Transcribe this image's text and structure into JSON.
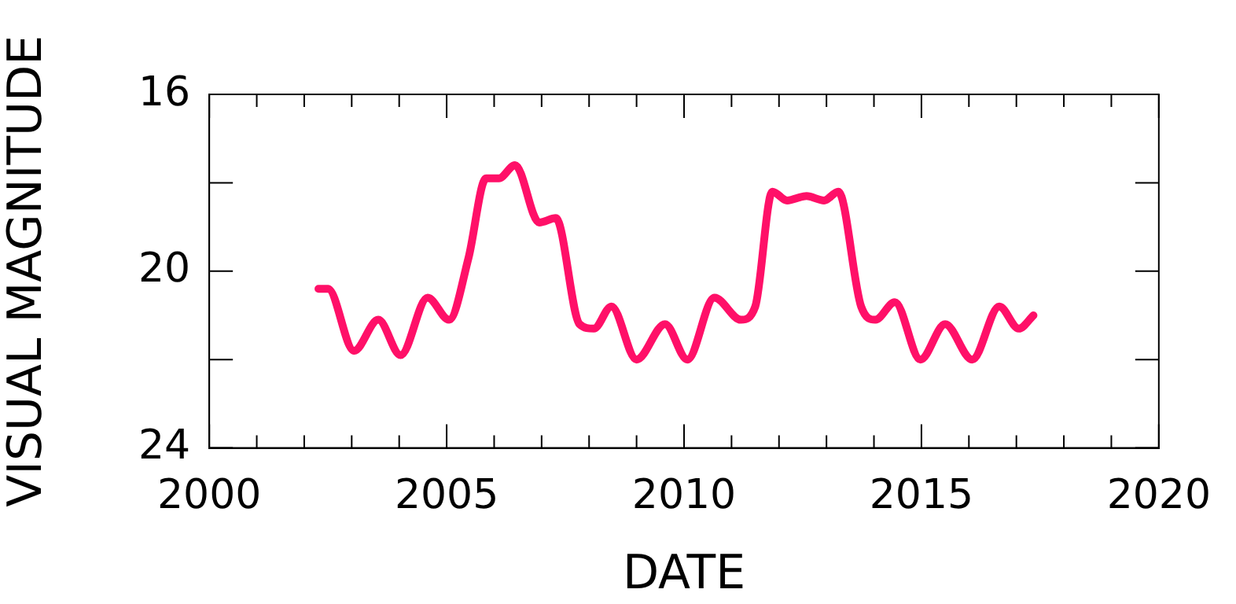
{
  "chart_data": {
    "type": "line",
    "xlabel": "DATE",
    "ylabel": "VISUAL MAGNITUDE",
    "x": [
      2002.3,
      2002.5,
      2003.05,
      2003.56,
      2004.03,
      2004.6,
      2005.05,
      2005.46,
      2005.83,
      2006.1,
      2006.44,
      2006.95,
      2007.3,
      2007.8,
      2008.1,
      2008.47,
      2009.0,
      2009.6,
      2010.07,
      2010.64,
      2011.2,
      2011.5,
      2011.86,
      2012.17,
      2012.58,
      2012.95,
      2013.25,
      2013.73,
      2014.03,
      2014.44,
      2014.98,
      2015.5,
      2016.07,
      2016.64,
      2017.05,
      2017.36
    ],
    "series": [
      {
        "color": "#ff1068",
        "values": [
          20.4,
          20.4,
          21.8,
          21.1,
          21.9,
          20.6,
          21.1,
          19.7,
          17.9,
          17.9,
          17.6,
          18.9,
          18.8,
          21.2,
          21.3,
          20.8,
          22.0,
          21.2,
          22.0,
          20.6,
          21.1,
          20.8,
          18.2,
          18.4,
          18.3,
          18.4,
          18.2,
          20.8,
          21.1,
          20.7,
          22.0,
          21.2,
          22.0,
          20.8,
          21.3,
          21.0
        ]
      }
    ],
    "xlim": [
      2000,
      2020
    ],
    "xticks": [
      2000,
      {
        "value": 2001,
        "label": null
      },
      {
        "value": 2002,
        "label": null
      },
      {
        "value": 2003,
        "label": null
      },
      {
        "value": 2004,
        "label": null
      },
      2005,
      {
        "value": 2006,
        "label": null
      },
      {
        "value": 2007,
        "label": null
      },
      {
        "value": 2008,
        "label": null
      },
      {
        "value": 2009,
        "label": null
      },
      2010,
      {
        "value": 2011,
        "label": null
      },
      {
        "value": 2012,
        "label": null
      },
      {
        "value": 2013,
        "label": null
      },
      {
        "value": 2014,
        "label": null
      },
      2015,
      {
        "value": 2016,
        "label": null
      },
      {
        "value": 2017,
        "label": null
      },
      {
        "value": 2018,
        "label": null
      },
      {
        "value": 2019,
        "label": null
      },
      2020
    ],
    "ylim": [
      24,
      16
    ],
    "yticks": [
      16,
      {
        "value": 18,
        "label": null
      },
      20,
      {
        "value": 22,
        "label": null
      },
      24
    ],
    "marker": "none",
    "line_style": "solid"
  }
}
